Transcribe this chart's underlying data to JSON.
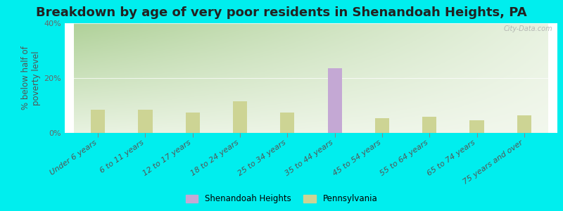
{
  "title": "Breakdown by age of very poor residents in Shenandoah Heights, PA",
  "ylabel": "% below half of\npoverty level",
  "categories": [
    "Under 6 years",
    "6 to 11 years",
    "12 to 17 years",
    "18 to 24 years",
    "25 to 34 years",
    "35 to 44 years",
    "45 to 54 years",
    "55 to 64 years",
    "65 to 74 years",
    "75 years and over"
  ],
  "shenandoah_values": [
    0,
    0,
    0,
    0,
    0,
    23.5,
    0,
    0,
    0,
    0
  ],
  "pennsylvania_values": [
    8.5,
    8.5,
    7.5,
    11.5,
    7.5,
    6.5,
    5.5,
    6.0,
    4.5,
    6.5
  ],
  "shenandoah_color": "#c4a8d4",
  "pennsylvania_color": "#cdd494",
  "outer_bg_color": "#00eeee",
  "ylim": [
    0,
    40
  ],
  "yticks": [
    0,
    20,
    40
  ],
  "ytick_labels": [
    "0%",
    "20%",
    "40%"
  ],
  "watermark": "City-Data.com",
  "title_fontsize": 13,
  "axis_label_fontsize": 8.5,
  "tick_fontsize": 8,
  "bar_width": 0.4
}
